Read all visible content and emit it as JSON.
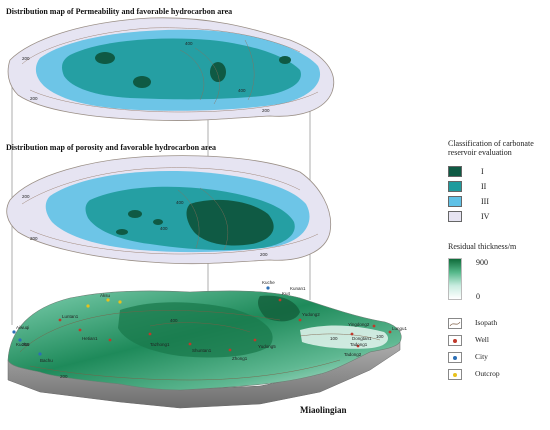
{
  "titles": {
    "permeability": "Distribution map of Permeability and favorable hydrocarbon area",
    "porosity": "Distribution map of porosity and favorable hydrocarbon area",
    "bottom": "Miaolingian"
  },
  "legend": {
    "classification_title": "Classification of carbonate reservoir evaluation",
    "classes": [
      {
        "label": "I",
        "color": "#0f5a44"
      },
      {
        "label": "II",
        "color": "#1f9b9d"
      },
      {
        "label": "III",
        "color": "#5fc1e6"
      },
      {
        "label": "IV",
        "color": "#e6e4f2"
      }
    ],
    "thickness_title": "Residual thickness/m",
    "thickness_max": "900",
    "thickness_min": "0",
    "symbols": [
      {
        "label": "Isopath",
        "icon": "isopath-icon"
      },
      {
        "label": "Well",
        "icon": "well-icon",
        "color": "#c0392b"
      },
      {
        "label": "City",
        "icon": "city-icon",
        "color": "#2c6fb6"
      },
      {
        "label": "Outcrop",
        "icon": "outcrop-icon",
        "color": "#e8c21c"
      }
    ]
  },
  "contour_labels": {
    "top": [
      "200",
      "200",
      "400",
      "200",
      "400"
    ],
    "mid": [
      "200",
      "400",
      "400",
      "200",
      "200"
    ],
    "bottom": [
      "200",
      "200",
      "400",
      "100",
      "100"
    ]
  },
  "place_labels": [
    "Aksu",
    "Kuche",
    "Ku4",
    "Aiwuqi",
    "Kucha",
    "Kunan1",
    "Yudong2",
    "Luntan1",
    "Tadong2",
    "Lungu1",
    "Tazhong1",
    "Yingdong2",
    "Tadong1",
    "Dongtan1",
    "Yudong5",
    "Hetian1",
    "Zhong1",
    "Shuntan1",
    "Bachu"
  ]
}
